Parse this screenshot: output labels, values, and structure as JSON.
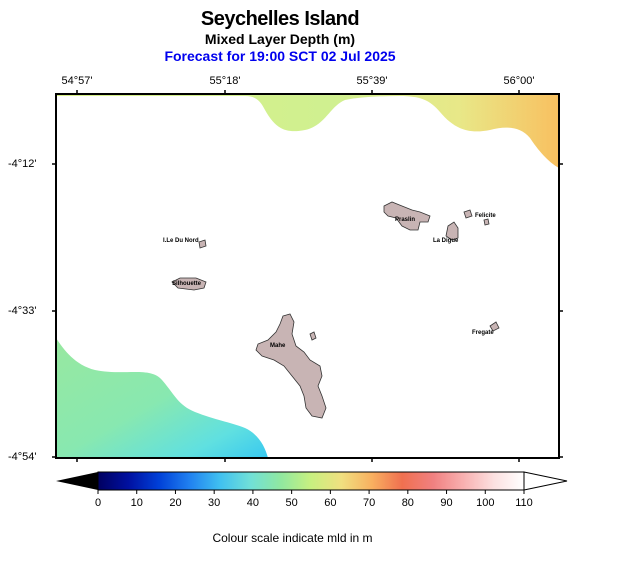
{
  "header": {
    "title": "Seychelles Island",
    "subtitle": "Mixed Layer Depth (m)",
    "forecast": "Forecast for  19:00 SCT 02 Jul 2025"
  },
  "axes": {
    "longitudes": [
      "54°57'",
      "55°18'",
      "55°39'",
      "56°00'"
    ],
    "latitudes": [
      "-4°12'",
      "-4°33'",
      "-4°54'"
    ]
  },
  "places": [
    "Praslin",
    "La Digue",
    "Felicite",
    "I.Le Du Nord",
    "Silhouette",
    "Mahe",
    "Fregate"
  ],
  "colorbar": {
    "ticks": [
      "0",
      "10",
      "20",
      "30",
      "40",
      "50",
      "60",
      "70",
      "80",
      "90",
      "100",
      "110"
    ],
    "caption": "Colour scale indicate mld in m",
    "colors": [
      "#000060",
      "#0010a0",
      "#0040d8",
      "#2080f0",
      "#40c0f0",
      "#70e0d8",
      "#90e8a0",
      "#c8f080",
      "#f0e080",
      "#f8b060",
      "#f07050",
      "#f08080",
      "#f8b0b0",
      "#fce0e0",
      "#ffffff"
    ]
  }
}
